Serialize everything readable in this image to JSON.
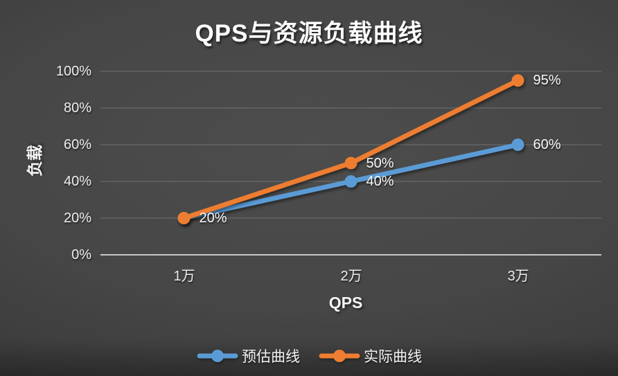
{
  "chart_data": {
    "type": "line",
    "title": "QPS与资源负载曲线",
    "xlabel": "QPS",
    "ylabel": "负载",
    "categories": [
      "1万",
      "2万",
      "3万"
    ],
    "yticks": [
      "0%",
      "20%",
      "40%",
      "60%",
      "80%",
      "100%"
    ],
    "ylim": [
      0,
      100
    ],
    "grid": true,
    "legend_position": "bottom",
    "series": [
      {
        "name": "预估曲线",
        "color": "#5B9BD5",
        "values": [
          20,
          40,
          60
        ],
        "labels": [
          "",
          "40%",
          "60%"
        ]
      },
      {
        "name": "实际曲线",
        "color": "#ED7D31",
        "values": [
          20,
          50,
          95
        ],
        "labels": [
          "20%",
          "50%",
          "95%"
        ]
      }
    ]
  },
  "colors": {
    "background_center": "#4d4d4d",
    "background_edge": "#2c2c2c",
    "gridline": "rgba(255,255,255,0.22)",
    "axis_line": "#c9c9c9",
    "text": "#f1f1f1"
  }
}
